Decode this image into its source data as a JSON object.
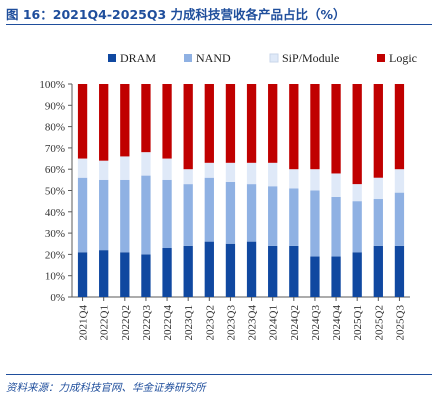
{
  "header": {
    "title": "图 16：2021Q4-2025Q3 力成科技营收各产品占比（%）"
  },
  "footer": {
    "source": "资料来源：力成科技官网、华金证券研究所"
  },
  "colors": {
    "DRAM": "#1048a0",
    "NAND": "#8fb1e3",
    "SiP/Module": "#dfe9f8",
    "Logic": "#c00000"
  },
  "chart_data": {
    "type": "bar",
    "stacked": true,
    "categories": [
      "2021Q4",
      "2022Q1",
      "2022Q2",
      "2022Q3",
      "2022Q4",
      "2023Q1",
      "2023Q2",
      "2023Q3",
      "2023Q4",
      "2024Q1",
      "2024Q2",
      "2024Q3",
      "2024Q4",
      "2025Q1",
      "2025Q2",
      "2025Q3"
    ],
    "series": [
      {
        "name": "DRAM",
        "values": [
          21,
          22,
          21,
          20,
          23,
          24,
          26,
          25,
          26,
          24,
          24,
          19,
          19,
          21,
          24,
          24
        ]
      },
      {
        "name": "NAND",
        "values": [
          35,
          33,
          34,
          37,
          32,
          29,
          30,
          29,
          27,
          28,
          27,
          31,
          28,
          24,
          22,
          25
        ]
      },
      {
        "name": "SiP/Module",
        "values": [
          9,
          9,
          11,
          11,
          10,
          7,
          7,
          9,
          10,
          11,
          9,
          10,
          11,
          8,
          10,
          11
        ]
      },
      {
        "name": "Logic",
        "values": [
          35,
          36,
          34,
          32,
          35,
          40,
          37,
          37,
          37,
          37,
          40,
          40,
          42,
          47,
          44,
          40
        ]
      }
    ],
    "ylim": [
      0,
      100
    ],
    "yticks": [
      "0%",
      "10%",
      "20%",
      "30%",
      "40%",
      "50%",
      "60%",
      "70%",
      "80%",
      "90%",
      "100%"
    ],
    "grid": false,
    "legend": "top"
  }
}
